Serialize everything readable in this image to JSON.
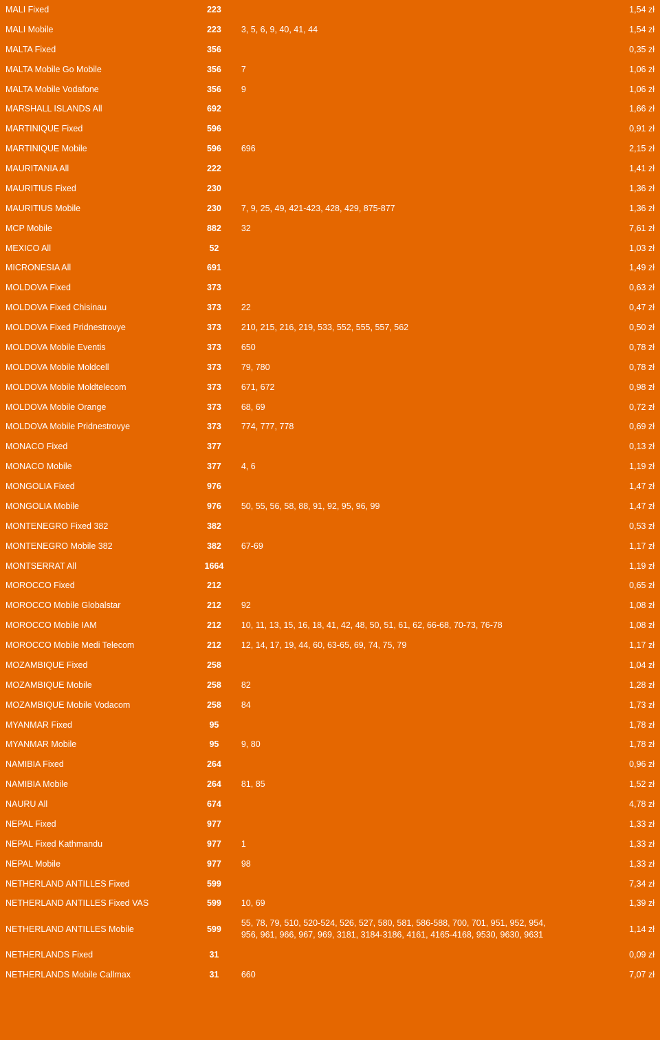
{
  "rows": [
    {
      "name": "MALI Fixed",
      "code": "223",
      "prefixes": "",
      "price": "1,54 zł"
    },
    {
      "name": "MALI Mobile",
      "code": "223",
      "prefixes": "3, 5, 6, 9, 40, 41, 44",
      "price": "1,54 zł"
    },
    {
      "name": "MALTA Fixed",
      "code": "356",
      "prefixes": "",
      "price": "0,35 zł"
    },
    {
      "name": "MALTA Mobile Go Mobile",
      "code": "356",
      "prefixes": "7",
      "price": "1,06 zł"
    },
    {
      "name": "MALTA Mobile Vodafone",
      "code": "356",
      "prefixes": "9",
      "price": "1,06 zł"
    },
    {
      "name": "MARSHALL ISLANDS All",
      "code": "692",
      "prefixes": "",
      "price": "1,66 zł"
    },
    {
      "name": "MARTINIQUE Fixed",
      "code": "596",
      "prefixes": "",
      "price": "0,91 zł"
    },
    {
      "name": "MARTINIQUE Mobile",
      "code": "596",
      "prefixes": "696",
      "price": "2,15 zł"
    },
    {
      "name": "MAURITANIA All",
      "code": "222",
      "prefixes": "",
      "price": "1,41 zł"
    },
    {
      "name": "MAURITIUS Fixed",
      "code": "230",
      "prefixes": "",
      "price": "1,36 zł"
    },
    {
      "name": "MAURITIUS Mobile",
      "code": "230",
      "prefixes": "7, 9, 25, 49, 421-423, 428, 429, 875-877",
      "price": "1,36 zł"
    },
    {
      "name": "MCP Mobile",
      "code": "882",
      "prefixes": "32",
      "price": "7,61 zł"
    },
    {
      "name": "MEXICO All",
      "code": "52",
      "prefixes": "",
      "price": "1,03 zł"
    },
    {
      "name": "MICRONESIA All",
      "code": "691",
      "prefixes": "",
      "price": "1,49 zł"
    },
    {
      "name": "MOLDOVA Fixed",
      "code": "373",
      "prefixes": "",
      "price": "0,63 zł"
    },
    {
      "name": "MOLDOVA Fixed Chisinau",
      "code": "373",
      "prefixes": "22",
      "price": "0,47 zł"
    },
    {
      "name": "MOLDOVA Fixed Pridnestrovye",
      "code": "373",
      "prefixes": "210, 215, 216, 219, 533, 552, 555, 557, 562",
      "price": "0,50 zł"
    },
    {
      "name": "MOLDOVA Mobile Eventis",
      "code": "373",
      "prefixes": "650",
      "price": "0,78 zł"
    },
    {
      "name": "MOLDOVA Mobile Moldcell",
      "code": "373",
      "prefixes": "79, 780",
      "price": "0,78 zł"
    },
    {
      "name": "MOLDOVA Mobile Moldtelecom",
      "code": "373",
      "prefixes": "671, 672",
      "price": "0,98 zł"
    },
    {
      "name": "MOLDOVA Mobile Orange",
      "code": "373",
      "prefixes": "68, 69",
      "price": "0,72 zł"
    },
    {
      "name": "MOLDOVA Mobile Pridnestrovye",
      "code": "373",
      "prefixes": "774, 777, 778",
      "price": "0,69 zł"
    },
    {
      "name": "MONACO Fixed",
      "code": "377",
      "prefixes": "",
      "price": "0,13 zł"
    },
    {
      "name": "MONACO Mobile",
      "code": "377",
      "prefixes": "4, 6",
      "price": "1,19 zł"
    },
    {
      "name": "MONGOLIA Fixed",
      "code": "976",
      "prefixes": "",
      "price": "1,47 zł"
    },
    {
      "name": "MONGOLIA Mobile",
      "code": "976",
      "prefixes": "50, 55, 56, 58, 88, 91, 92, 95, 96, 99",
      "price": "1,47 zł"
    },
    {
      "name": "MONTENEGRO Fixed 382",
      "code": "382",
      "prefixes": "",
      "price": "0,53 zł"
    },
    {
      "name": "MONTENEGRO Mobile 382",
      "code": "382",
      "prefixes": "67-69",
      "price": "1,17 zł"
    },
    {
      "name": "MONTSERRAT All",
      "code": "1664",
      "prefixes": "",
      "price": "1,19 zł"
    },
    {
      "name": "MOROCCO Fixed",
      "code": "212",
      "prefixes": "",
      "price": "0,65 zł"
    },
    {
      "name": "MOROCCO Mobile Globalstar",
      "code": "212",
      "prefixes": "92",
      "price": "1,08 zł"
    },
    {
      "name": "MOROCCO Mobile IAM",
      "code": "212",
      "prefixes": "10, 11, 13, 15, 16, 18, 41, 42, 48, 50, 51, 61, 62, 66-68, 70-73, 76-78",
      "price": "1,08 zł"
    },
    {
      "name": "MOROCCO Mobile Medi Telecom",
      "code": "212",
      "prefixes": "12, 14, 17, 19, 44, 60, 63-65, 69, 74, 75, 79",
      "price": "1,17 zł"
    },
    {
      "name": "MOZAMBIQUE Fixed",
      "code": "258",
      "prefixes": "",
      "price": "1,04 zł"
    },
    {
      "name": "MOZAMBIQUE Mobile",
      "code": "258",
      "prefixes": "82",
      "price": "1,28 zł"
    },
    {
      "name": "MOZAMBIQUE Mobile Vodacom",
      "code": "258",
      "prefixes": "84",
      "price": "1,73 zł"
    },
    {
      "name": "MYANMAR Fixed",
      "code": "95",
      "prefixes": "",
      "price": "1,78 zł"
    },
    {
      "name": "MYANMAR Mobile",
      "code": "95",
      "prefixes": "9, 80",
      "price": "1,78 zł"
    },
    {
      "name": "NAMIBIA Fixed",
      "code": "264",
      "prefixes": "",
      "price": "0,96 zł"
    },
    {
      "name": "NAMIBIA Mobile",
      "code": "264",
      "prefixes": "81, 85",
      "price": "1,52 zł"
    },
    {
      "name": "NAURU All",
      "code": "674",
      "prefixes": "",
      "price": "4,78 zł"
    },
    {
      "name": "NEPAL Fixed",
      "code": "977",
      "prefixes": "",
      "price": "1,33 zł"
    },
    {
      "name": "NEPAL Fixed Kathmandu",
      "code": "977",
      "prefixes": "1",
      "price": "1,33 zł"
    },
    {
      "name": "NEPAL Mobile",
      "code": "977",
      "prefixes": "98",
      "price": "1,33 zł"
    },
    {
      "name": "NETHERLAND ANTILLES Fixed",
      "code": "599",
      "prefixes": "",
      "price": "7,34 zł"
    },
    {
      "name": "NETHERLAND ANTILLES Fixed VAS",
      "code": "599",
      "prefixes": "10, 69",
      "price": "1,39 zł"
    },
    {
      "name": "NETHERLAND ANTILLES Mobile",
      "code": "599",
      "prefixes": "55, 78, 79, 510, 520-524, 526, 527, 580, 581, 586-588, 700, 701, 951, 952, 954, 956, 961, 966, 967, 969, 3181, 3184-3186, 4161, 4165-4168, 9530, 9630, 9631",
      "price": "1,14 zł"
    },
    {
      "name": "NETHERLANDS Fixed",
      "code": "31",
      "prefixes": "",
      "price": "0,09 zł"
    },
    {
      "name": "NETHERLANDS Mobile Callmax",
      "code": "31",
      "prefixes": "660",
      "price": "7,07 zł"
    }
  ]
}
